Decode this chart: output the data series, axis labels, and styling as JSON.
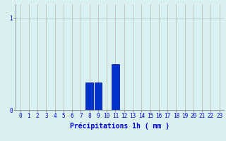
{
  "categories": [
    0,
    1,
    2,
    3,
    4,
    5,
    6,
    7,
    8,
    9,
    10,
    11,
    12,
    13,
    14,
    15,
    16,
    17,
    18,
    19,
    20,
    21,
    22,
    23
  ],
  "values": [
    0,
    0,
    0,
    0,
    0,
    0,
    0,
    0,
    0.3,
    0.3,
    0,
    0.5,
    0,
    0,
    0,
    0,
    0,
    0,
    0,
    0,
    0,
    0,
    0,
    0
  ],
  "bar_color": "#0033cc",
  "bar_edge_color": "#0000aa",
  "background_color": "#d8f0f0",
  "grid_color_v": "#c0b0b0",
  "grid_color_h": "#b8d0d0",
  "xlabel": "Précipitations 1h ( mm )",
  "xlabel_color": "#0000cc",
  "tick_color": "#0000cc",
  "ytick_labels": [
    "0",
    "1"
  ],
  "ytick_vals": [
    0,
    1
  ],
  "ylim": [
    0,
    1.15
  ],
  "bar_width": 0.85,
  "xlabel_fontsize": 7,
  "tick_fontsize": 5.5
}
